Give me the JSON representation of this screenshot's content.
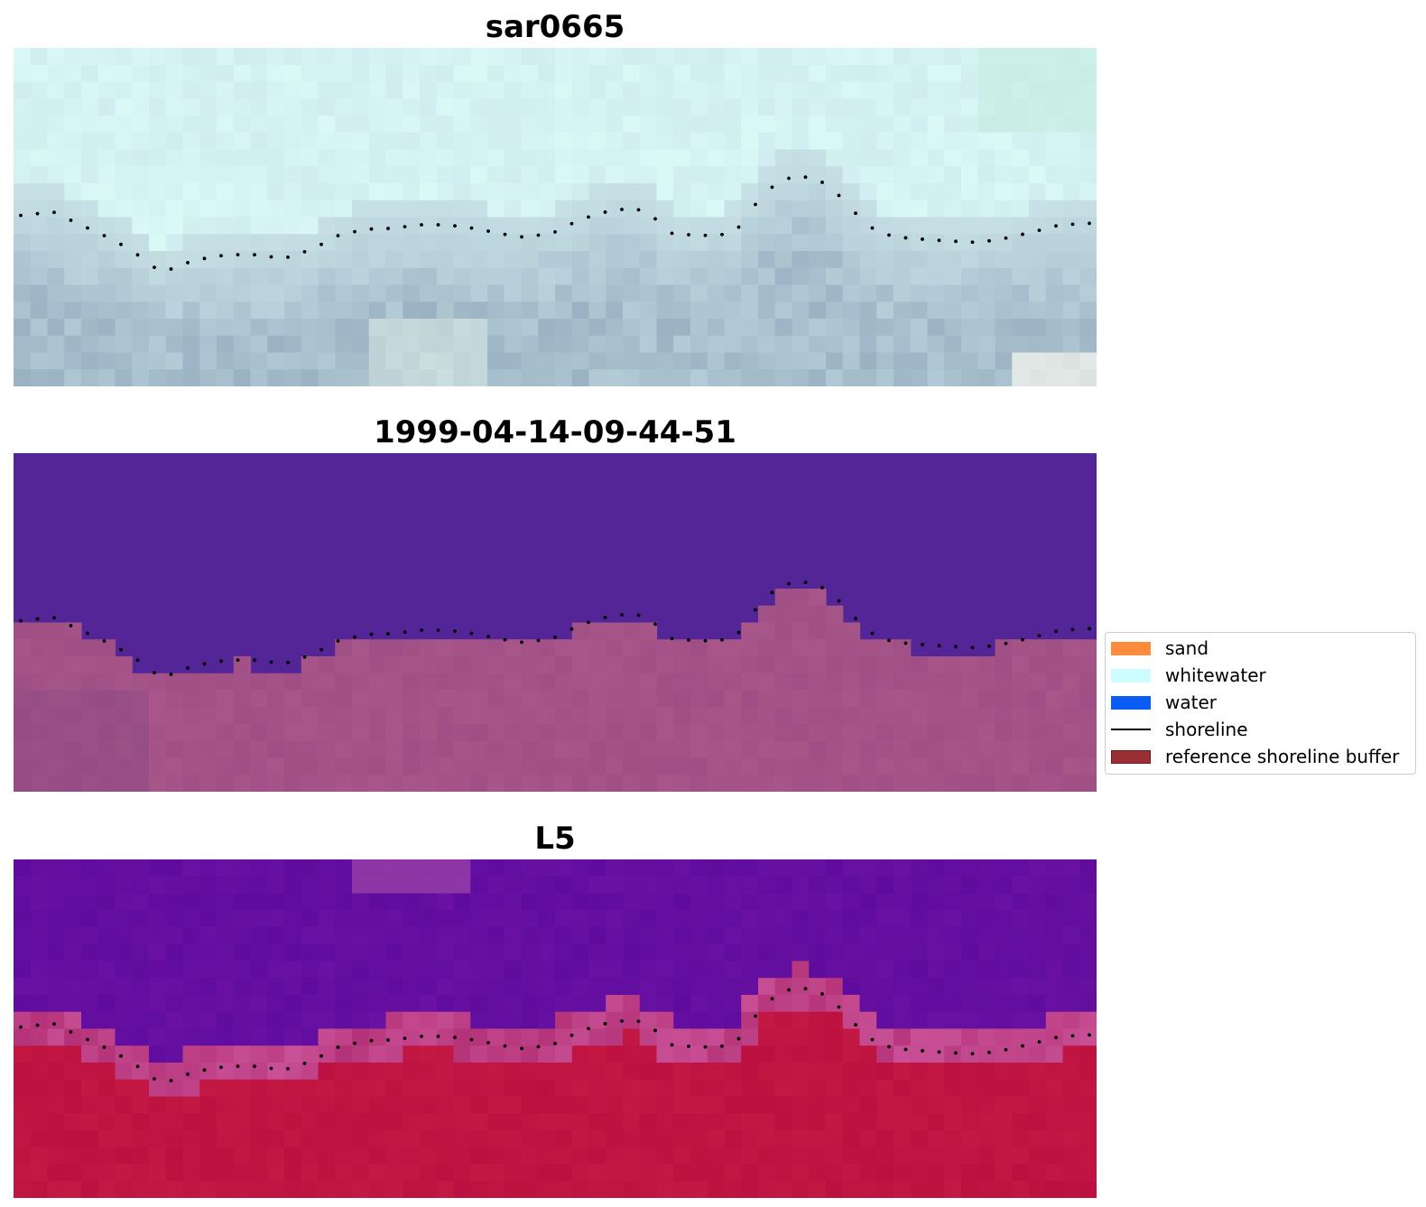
{
  "panels": [
    {
      "title": "sar0665",
      "background": "#cfe9ea",
      "style": "rgb"
    },
    {
      "title": "1999-04-14-09-44-51",
      "background": "#532596",
      "style": "classified"
    },
    {
      "title": "L5",
      "background": "#5e0aa0",
      "style": "index"
    }
  ],
  "legend": {
    "items": [
      {
        "label": "sand",
        "color": "#ff8c3c",
        "kind": "patch"
      },
      {
        "label": "whitewater",
        "color": "#ccfcfc",
        "kind": "patch"
      },
      {
        "label": "water",
        "color": "#0a5cf5",
        "kind": "patch"
      },
      {
        "label": "shoreline",
        "color": "#000000",
        "kind": "line"
      },
      {
        "label": "reference shoreline buffer",
        "color": "#9b2f36",
        "kind": "patch"
      }
    ]
  },
  "colors": {
    "shoreline_dots": "#000000",
    "whitewater_tint": "#d9f8f6",
    "wet_sand_tint": "#9fb6c6",
    "water_mask": "#532596",
    "land_mask": "#a04f86",
    "index_water": "#5f0c9e",
    "index_land": "#bc1040"
  }
}
